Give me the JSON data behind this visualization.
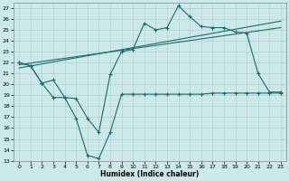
{
  "xlabel": "Humidex (Indice chaleur)",
  "bg_color": "#cce8e8",
  "grid_color": "#aad4d4",
  "line_color": "#1a6b6b",
  "xlim": [
    -0.5,
    23.5
  ],
  "ylim": [
    13,
    27.5
  ],
  "xticks": [
    0,
    1,
    2,
    3,
    4,
    5,
    6,
    7,
    8,
    9,
    10,
    11,
    12,
    13,
    14,
    15,
    16,
    17,
    18,
    19,
    20,
    21,
    22,
    23
  ],
  "yticks": [
    13,
    14,
    15,
    16,
    17,
    18,
    19,
    20,
    21,
    22,
    23,
    24,
    25,
    26,
    27
  ],
  "line1_x": [
    0,
    1,
    2,
    3,
    4,
    5,
    6,
    7,
    8,
    9,
    10,
    11,
    12,
    13,
    14,
    15,
    16,
    17,
    18,
    19,
    20,
    21,
    22,
    23
  ],
  "line1_y": [
    22.0,
    21.7,
    20.1,
    20.4,
    18.8,
    18.7,
    16.9,
    15.6,
    20.9,
    23.0,
    23.2,
    25.6,
    25.0,
    25.2,
    27.2,
    26.2,
    25.3,
    25.2,
    25.2,
    24.8,
    24.7,
    21.0,
    19.3,
    19.3
  ],
  "line2_x": [
    0,
    23
  ],
  "line2_y": [
    21.5,
    25.8
  ],
  "line3_x": [
    0,
    23
  ],
  "line3_y": [
    21.8,
    25.2
  ],
  "line4_x": [
    0,
    1,
    2,
    3,
    4,
    5,
    6,
    7,
    8,
    9,
    10,
    11,
    12,
    13,
    14,
    15,
    16,
    17,
    18,
    19,
    20,
    21,
    22,
    23
  ],
  "line4_y": [
    22.0,
    21.7,
    20.1,
    18.8,
    18.8,
    16.9,
    13.5,
    13.2,
    15.6,
    19.1,
    19.1,
    19.1,
    19.1,
    19.1,
    19.1,
    19.1,
    19.1,
    19.2,
    19.2,
    19.2,
    19.2,
    19.2,
    19.2,
    19.2
  ]
}
